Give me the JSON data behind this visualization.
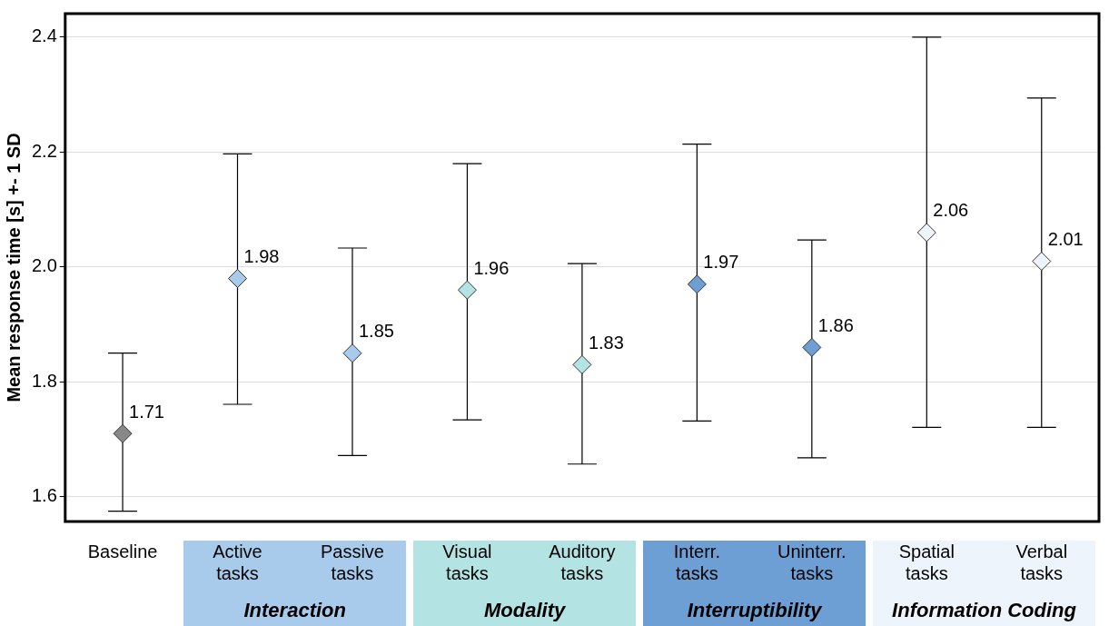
{
  "chart_data": {
    "type": "scatter",
    "ylabel": "Mean response time [s] +- 1 SD",
    "categories": [
      "Baseline",
      "Active tasks",
      "Passive tasks",
      "Visual tasks",
      "Auditory tasks",
      "Interr. tasks",
      "Uninterr. tasks",
      "Spatial tasks",
      "Verbal tasks"
    ],
    "values": [
      1.71,
      1.98,
      1.85,
      1.96,
      1.83,
      1.97,
      1.86,
      2.06,
      2.01
    ],
    "errors": [
      [
        1.575,
        1.85
      ],
      [
        1.761,
        2.197
      ],
      [
        1.672,
        2.033
      ],
      [
        1.734,
        2.18
      ],
      [
        1.657,
        2.006
      ],
      [
        1.732,
        2.214
      ],
      [
        1.668,
        2.047
      ],
      [
        1.721,
        2.4
      ],
      [
        1.721,
        2.294
      ]
    ],
    "colors": [
      "#888888",
      "#a9cbeb",
      "#a9cbeb",
      "#b3e4e3",
      "#b3e4e3",
      "#6d9fd4",
      "#6d9fd4",
      "#eef4fb",
      "#eef4fb"
    ],
    "ylim": [
      1.557,
      2.441
    ],
    "yticks": [
      1.6,
      1.8,
      {
        "value": 2,
        "label": "2.0"
      },
      2.2,
      2.4
    ],
    "grid": "y",
    "marker": "diamond",
    "data_labels": true,
    "legend": false,
    "annotations": [
      "Interaction",
      "Modality",
      "Interruptibility",
      "Information Coding"
    ]
  }
}
